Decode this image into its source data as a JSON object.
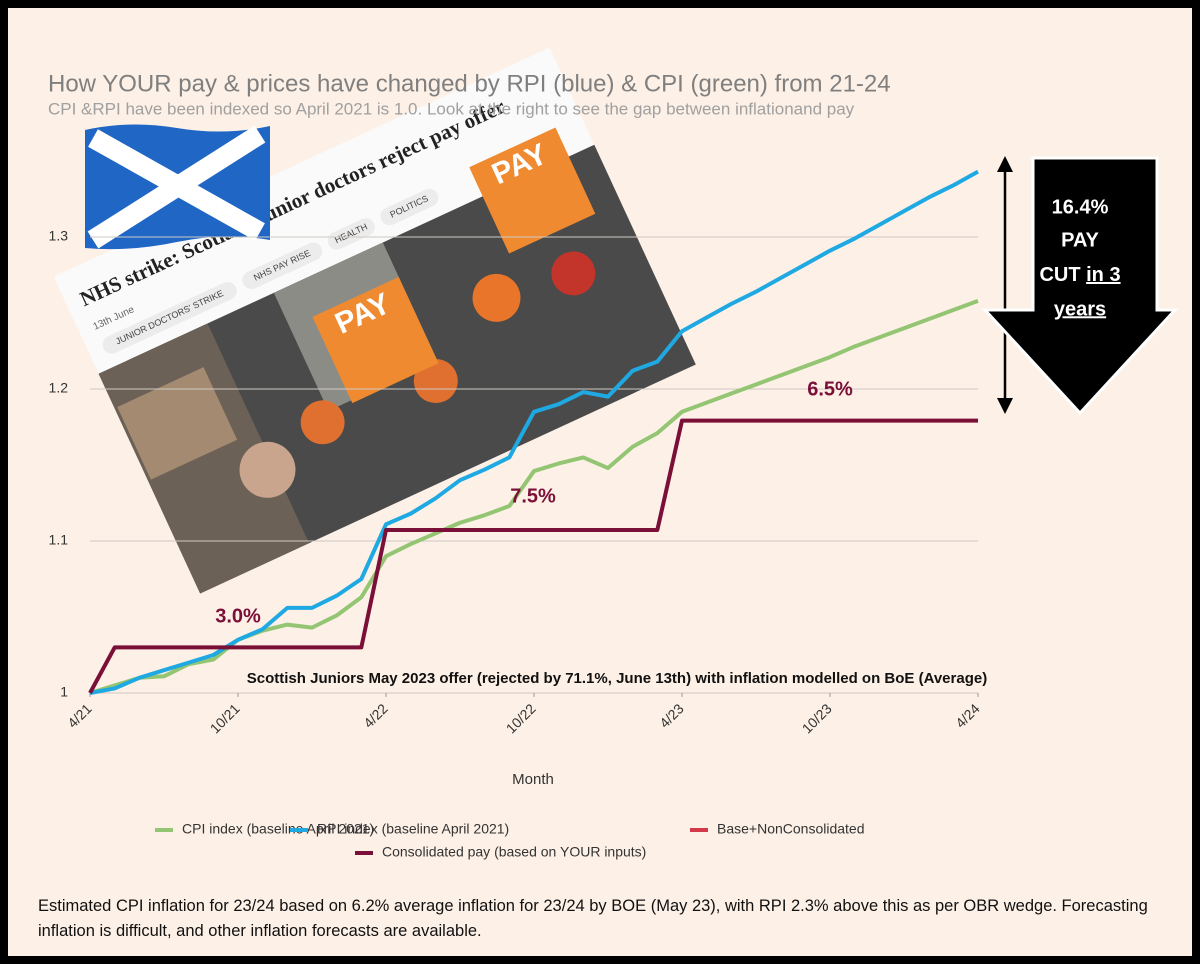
{
  "chart_data": {
    "type": "line",
    "title": "How YOUR pay & prices have changed by RPI (blue) & CPI (green) from 21-24",
    "subtitle": "CPI &RPI have been indexed so April 2021 is 1.0. Look at the right to see the gap between inflationand pay",
    "x_label": "Month",
    "x": [
      0,
      1,
      2,
      3,
      4,
      5,
      6,
      7,
      8,
      9,
      10,
      11,
      12,
      13,
      14,
      15,
      16,
      17,
      18,
      19,
      20,
      21,
      22,
      23,
      24,
      25,
      26,
      27,
      28,
      29,
      30,
      31,
      32,
      33,
      34,
      35,
      36
    ],
    "xlim": [
      0,
      36
    ],
    "xticks": [
      {
        "value": 0,
        "label": "4/21"
      },
      {
        "value": 6,
        "label": "10/21"
      },
      {
        "value": 12,
        "label": "4/22"
      },
      {
        "value": 18,
        "label": "10/22"
      },
      {
        "value": 24,
        "label": "4/23"
      },
      {
        "value": 30,
        "label": "10/23"
      },
      {
        "value": 36,
        "label": "4/24"
      }
    ],
    "ylim": [
      1,
      1.35
    ],
    "yticks": [
      1,
      1.1,
      1.2,
      1.3
    ],
    "grid": true,
    "series": [
      {
        "name": "CPI index (baseline April 2021)",
        "color": "#93c572",
        "values": [
          1.0,
          1.005,
          1.01,
          1.011,
          1.019,
          1.022,
          1.035,
          1.041,
          1.045,
          1.043,
          1.051,
          1.063,
          1.09,
          1.098,
          1.105,
          1.112,
          1.117,
          1.123,
          1.146,
          1.151,
          1.155,
          1.148,
          1.162,
          1.171,
          1.185,
          1.191,
          1.197,
          1.203,
          1.209,
          1.215,
          1.221,
          1.228,
          1.234,
          1.24,
          1.246,
          1.252,
          1.258
        ]
      },
      {
        "name": "RPI index (baseline April 2021)",
        "color": "#1fa9e3",
        "values": [
          1.0,
          1.003,
          1.01,
          1.015,
          1.02,
          1.025,
          1.035,
          1.042,
          1.056,
          1.056,
          1.064,
          1.075,
          1.111,
          1.118,
          1.128,
          1.14,
          1.147,
          1.155,
          1.185,
          1.19,
          1.198,
          1.195,
          1.212,
          1.218,
          1.238,
          1.247,
          1.256,
          1.264,
          1.273,
          1.282,
          1.291,
          1.299,
          1.308,
          1.317,
          1.326,
          1.334,
          1.343
        ]
      },
      {
        "name": "Base+NonConsolidated",
        "color": "#d23a4c",
        "values": [
          null,
          null,
          null,
          null,
          null,
          null,
          null,
          null,
          null,
          null,
          null,
          null,
          null,
          null,
          null,
          null,
          null,
          null,
          null,
          null,
          null,
          null,
          null,
          null,
          null,
          null,
          null,
          null,
          null,
          null,
          null,
          null,
          null,
          null,
          null,
          null,
          null
        ]
      },
      {
        "name": "Consolidated pay (based on YOUR inputs)",
        "color": "#7a0f38",
        "values": [
          1.0,
          1.03,
          1.03,
          1.03,
          1.03,
          1.03,
          1.03,
          1.03,
          1.03,
          1.03,
          1.03,
          1.03,
          1.10725,
          1.10725,
          1.10725,
          1.10725,
          1.10725,
          1.10725,
          1.10725,
          1.10725,
          1.10725,
          1.10725,
          1.10725,
          1.10725,
          1.1792,
          1.1792,
          1.1792,
          1.1792,
          1.1792,
          1.1792,
          1.1792,
          1.1792,
          1.1792,
          1.1792,
          1.1792,
          1.1792,
          1.1792
        ]
      }
    ],
    "annotations": [
      "3.0%",
      "7.5%",
      "6.5%"
    ],
    "note": "Scottish Juniors May 2023 offer (rejected by 71.1%, June 13th) with inflation modelled on BoE (Average)",
    "callout": [
      "16.4%",
      "PAY",
      "CUT",
      "in 3",
      "years"
    ]
  },
  "photo": {
    "headline": "NHS strike: Scotland junior doctors reject pay offer",
    "date": "13th June",
    "tags": [
      "JUNIOR DOCTORS' STRIKE",
      "NHS PAY RISE",
      "HEALTH",
      "POLITICS"
    ],
    "placard": "PAY"
  },
  "footnote": "Estimated CPI inflation for 23/24 based on 6.2% average inflation for 23/24 by BOE (May 23), with RPI 2.3% above this as per OBR wedge. Forecasting inflation is difficult, and other inflation forecasts are available."
}
